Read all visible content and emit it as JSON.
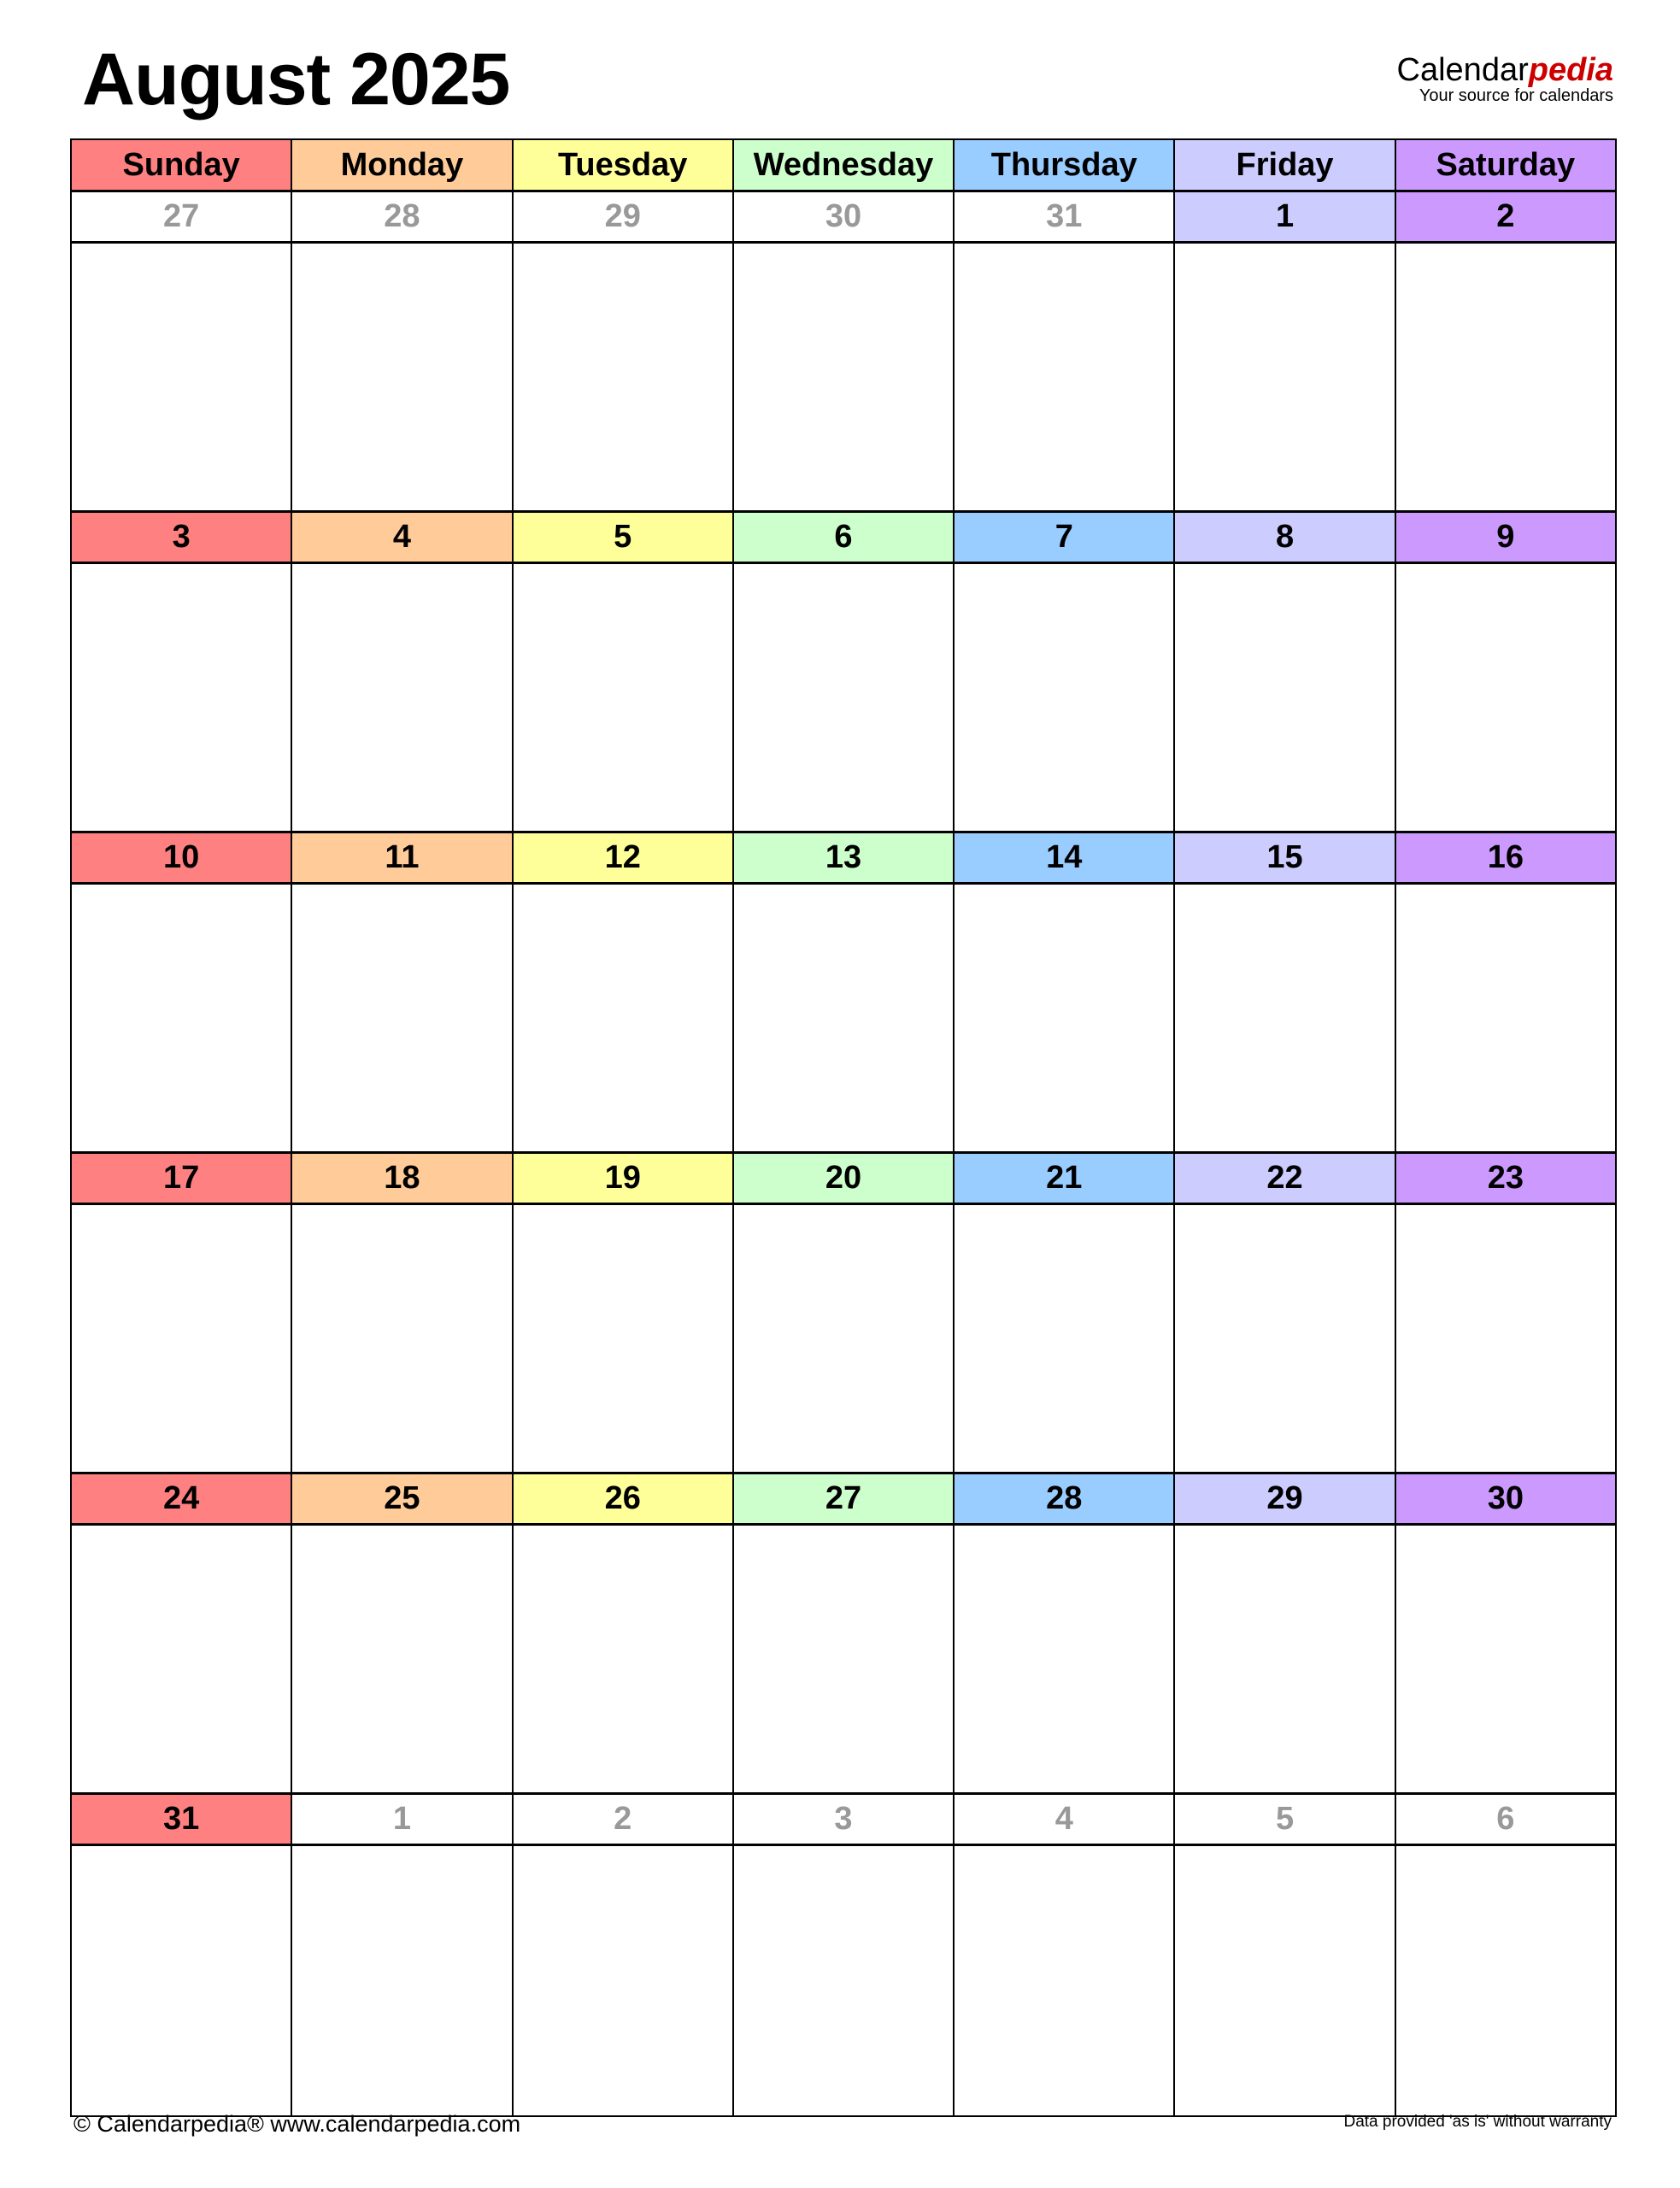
{
  "title": "August 2025",
  "logo": {
    "name_a": "Calendar",
    "name_b": "pedia",
    "tagline": "Your source for calendars"
  },
  "weekdays": [
    {
      "label": "Sunday",
      "color": "#FF8080"
    },
    {
      "label": "Monday",
      "color": "#FFCC99"
    },
    {
      "label": "Tuesday",
      "color": "#FFFF99"
    },
    {
      "label": "Wednesday",
      "color": "#CCFFCC"
    },
    {
      "label": "Thursday",
      "color": "#99CCFF"
    },
    {
      "label": "Friday",
      "color": "#CCCCFF"
    },
    {
      "label": "Saturday",
      "color": "#CC99FF"
    }
  ],
  "weeks": [
    [
      {
        "d": "27",
        "in": false
      },
      {
        "d": "28",
        "in": false
      },
      {
        "d": "29",
        "in": false
      },
      {
        "d": "30",
        "in": false
      },
      {
        "d": "31",
        "in": false
      },
      {
        "d": "1",
        "in": true
      },
      {
        "d": "2",
        "in": true
      }
    ],
    [
      {
        "d": "3",
        "in": true
      },
      {
        "d": "4",
        "in": true
      },
      {
        "d": "5",
        "in": true
      },
      {
        "d": "6",
        "in": true
      },
      {
        "d": "7",
        "in": true
      },
      {
        "d": "8",
        "in": true
      },
      {
        "d": "9",
        "in": true
      }
    ],
    [
      {
        "d": "10",
        "in": true
      },
      {
        "d": "11",
        "in": true
      },
      {
        "d": "12",
        "in": true
      },
      {
        "d": "13",
        "in": true
      },
      {
        "d": "14",
        "in": true
      },
      {
        "d": "15",
        "in": true
      },
      {
        "d": "16",
        "in": true
      }
    ],
    [
      {
        "d": "17",
        "in": true
      },
      {
        "d": "18",
        "in": true
      },
      {
        "d": "19",
        "in": true
      },
      {
        "d": "20",
        "in": true
      },
      {
        "d": "21",
        "in": true
      },
      {
        "d": "22",
        "in": true
      },
      {
        "d": "23",
        "in": true
      }
    ],
    [
      {
        "d": "24",
        "in": true
      },
      {
        "d": "25",
        "in": true
      },
      {
        "d": "26",
        "in": true
      },
      {
        "d": "27",
        "in": true
      },
      {
        "d": "28",
        "in": true
      },
      {
        "d": "29",
        "in": true
      },
      {
        "d": "30",
        "in": true
      }
    ],
    [
      {
        "d": "31",
        "in": true
      },
      {
        "d": "1",
        "in": false
      },
      {
        "d": "2",
        "in": false
      },
      {
        "d": "3",
        "in": false
      },
      {
        "d": "4",
        "in": false
      },
      {
        "d": "5",
        "in": false
      },
      {
        "d": "6",
        "in": false
      }
    ]
  ],
  "footer": {
    "left": "© Calendarpedia®   www.calendarpedia.com",
    "right": "Data provided 'as is' without warranty"
  }
}
